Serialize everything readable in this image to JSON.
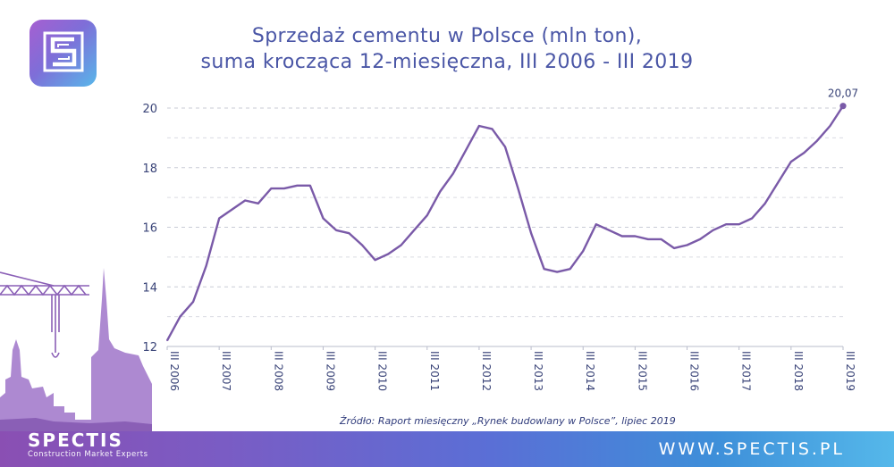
{
  "logo": {
    "icon": "spectis-s-logo-icon"
  },
  "title_lines": [
    "Sprzedaż cementu w Polsce (mln ton),",
    "suma krocząca 12-miesięczna, III 2006 - III 2019"
  ],
  "source": "Źródło: Raport miesięczny „Rynek budowlany w Polsce”, lipiec 2019",
  "footer": {
    "url": "WWW.SPECTIS.PL",
    "brand_name": "SPECTIS",
    "brand_tagline": "Construction Market Experts"
  },
  "colors": {
    "line": "#7a5aa8",
    "title": "#4a56a6",
    "grid": "#c9cbd6",
    "axis_text": "#3a4478",
    "silhouette": "#9a70c6"
  },
  "chart_data": {
    "type": "line",
    "title": "Sprzedaż cementu w Polsce (mln ton), suma krocząca 12-miesięczna, III 2006 - III 2019",
    "xlabel": "",
    "ylabel": "",
    "x_start_year": 2006,
    "x_end_year": 2019,
    "x_step": "quarter",
    "ylim": [
      12,
      20
    ],
    "yticks": [
      "12",
      "14",
      "16",
      "18",
      "20"
    ],
    "xticks": [
      "III 2006",
      "III 2007",
      "III 2008",
      "III 2009",
      "III 2010",
      "III 2011",
      "III 2012",
      "III 2013",
      "III 2014",
      "III 2015",
      "III 2016",
      "III 2017",
      "III 2018",
      "III 2019"
    ],
    "last_value_label": "20,07",
    "grid": true,
    "legend": "none",
    "series": [
      {
        "values": [
          12.2,
          13.0,
          13.5,
          14.7,
          16.3,
          16.6,
          16.9,
          16.8,
          17.3,
          17.3,
          17.4,
          17.4,
          16.3,
          15.9,
          15.8,
          15.4,
          14.9,
          15.1,
          15.4,
          15.9,
          16.4,
          17.2,
          17.8,
          18.6,
          19.4,
          19.3,
          18.7,
          17.3,
          15.8,
          14.6,
          14.5,
          14.6,
          15.2,
          16.1,
          15.9,
          15.7,
          15.7,
          15.6,
          15.6,
          15.3,
          15.4,
          15.6,
          15.9,
          16.1,
          16.1,
          16.3,
          16.8,
          17.5,
          18.2,
          18.5,
          18.9,
          19.4,
          20.07
        ]
      }
    ]
  }
}
